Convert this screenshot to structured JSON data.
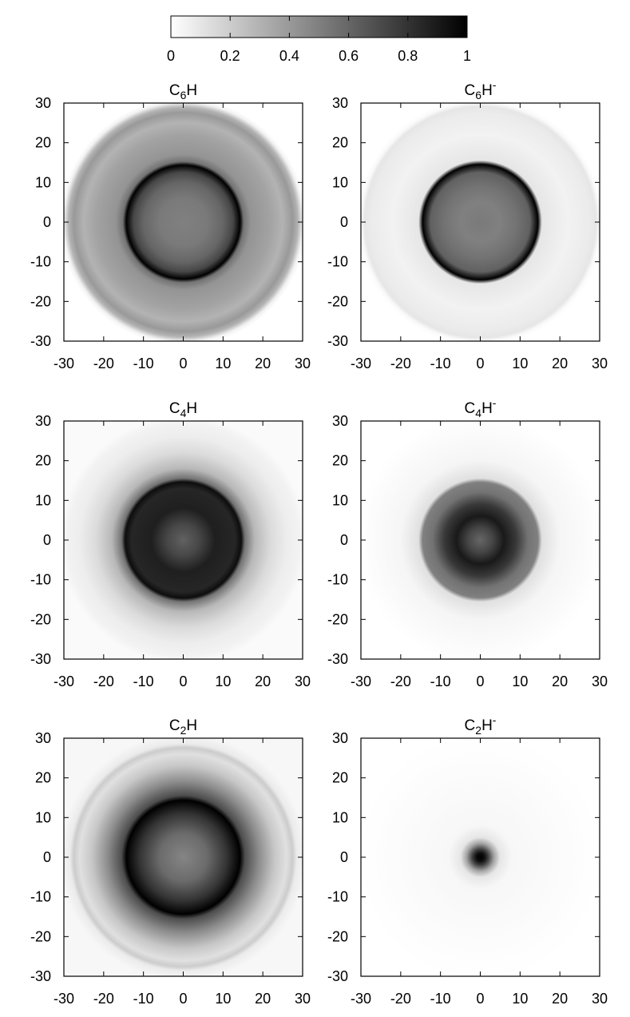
{
  "colorbar": {
    "ticks": [
      "0",
      "0.2",
      "0.4",
      "0.6",
      "0.8",
      "1"
    ],
    "range": [
      0,
      1
    ],
    "gradient": [
      "#ffffff",
      "#000000"
    ]
  },
  "chart_data": [
    {
      "type": "heatmap",
      "title": {
        "base": "C",
        "sub": "6",
        "rest": "H",
        "sup": ""
      },
      "xlim": [
        -30,
        30
      ],
      "ylim": [
        -30,
        30
      ],
      "xticks": [
        "-30",
        "-20",
        "-10",
        "0",
        "10",
        "20",
        "30"
      ],
      "yticks": [
        "-30",
        "-20",
        "-10",
        "0",
        "10",
        "20",
        "30"
      ],
      "radial_profile": [
        {
          "r": 0,
          "v": 0.5
        },
        {
          "r": 6,
          "v": 0.52
        },
        {
          "r": 10,
          "v": 0.6
        },
        {
          "r": 12.5,
          "v": 0.72
        },
        {
          "r": 14.3,
          "v": 1.0
        },
        {
          "r": 15.2,
          "v": 0.55
        },
        {
          "r": 17,
          "v": 0.42
        },
        {
          "r": 22,
          "v": 0.36
        },
        {
          "r": 25,
          "v": 0.3
        },
        {
          "r": 27.5,
          "v": 0.4
        },
        {
          "r": 28.8,
          "v": 0.3
        },
        {
          "r": 30,
          "v": 0.05
        },
        {
          "r": 31,
          "v": 0.0
        }
      ]
    },
    {
      "type": "heatmap",
      "title": {
        "base": "C",
        "sub": "6",
        "rest": "H",
        "sup": "-"
      },
      "xlim": [
        -30,
        30
      ],
      "ylim": [
        -30,
        30
      ],
      "xticks": [
        "-30",
        "-20",
        "-10",
        "0",
        "10",
        "20",
        "30"
      ],
      "yticks": [
        "-30",
        "-20",
        "-10",
        "0",
        "10",
        "20",
        "30"
      ],
      "radial_profile": [
        {
          "r": 0,
          "v": 0.52
        },
        {
          "r": 5,
          "v": 0.5
        },
        {
          "r": 9,
          "v": 0.55
        },
        {
          "r": 12.5,
          "v": 0.62
        },
        {
          "r": 14.5,
          "v": 1.0
        },
        {
          "r": 15.5,
          "v": 0.1
        },
        {
          "r": 22,
          "v": 0.05
        },
        {
          "r": 27.5,
          "v": 0.08
        },
        {
          "r": 29,
          "v": 0.1
        },
        {
          "r": 30,
          "v": 0.02
        },
        {
          "r": 31,
          "v": 0.0
        }
      ]
    },
    {
      "type": "heatmap",
      "title": {
        "base": "C",
        "sub": "4",
        "rest": "H",
        "sup": ""
      },
      "xlim": [
        -30,
        30
      ],
      "ylim": [
        -30,
        30
      ],
      "xticks": [
        "-30",
        "-20",
        "-10",
        "0",
        "10",
        "20",
        "30"
      ],
      "yticks": [
        "-30",
        "-20",
        "-10",
        "0",
        "10",
        "20",
        "30"
      ],
      "radial_profile": [
        {
          "r": 0,
          "v": 0.62
        },
        {
          "r": 4,
          "v": 0.72
        },
        {
          "r": 8,
          "v": 0.88
        },
        {
          "r": 13,
          "v": 0.85
        },
        {
          "r": 14.6,
          "v": 0.95
        },
        {
          "r": 15.5,
          "v": 0.55
        },
        {
          "r": 18,
          "v": 0.28
        },
        {
          "r": 22,
          "v": 0.14
        },
        {
          "r": 26,
          "v": 0.07
        },
        {
          "r": 29,
          "v": 0.05
        },
        {
          "r": 31,
          "v": 0.02
        }
      ]
    },
    {
      "type": "heatmap",
      "title": {
        "base": "C",
        "sub": "4",
        "rest": "H",
        "sup": "-"
      },
      "xlim": [
        -30,
        30
      ],
      "ylim": [
        -30,
        30
      ],
      "xticks": [
        "-30",
        "-20",
        "-10",
        "0",
        "10",
        "20",
        "30"
      ],
      "yticks": [
        "-30",
        "-20",
        "-10",
        "0",
        "10",
        "20",
        "30"
      ],
      "radial_profile": [
        {
          "r": 0,
          "v": 0.6
        },
        {
          "r": 3,
          "v": 0.72
        },
        {
          "r": 6,
          "v": 0.9
        },
        {
          "r": 9,
          "v": 0.78
        },
        {
          "r": 12,
          "v": 0.55
        },
        {
          "r": 14.5,
          "v": 0.5
        },
        {
          "r": 15.5,
          "v": 0.12
        },
        {
          "r": 20,
          "v": 0.04
        },
        {
          "r": 31,
          "v": 0.0
        }
      ]
    },
    {
      "type": "heatmap",
      "title": {
        "base": "C",
        "sub": "2",
        "rest": "H",
        "sup": ""
      },
      "xlim": [
        -30,
        30
      ],
      "ylim": [
        -30,
        30
      ],
      "xticks": [
        "-30",
        "-20",
        "-10",
        "0",
        "10",
        "20",
        "30"
      ],
      "yticks": [
        "-30",
        "-20",
        "-10",
        "0",
        "10",
        "20",
        "30"
      ],
      "radial_profile": [
        {
          "r": 0,
          "v": 0.48
        },
        {
          "r": 6,
          "v": 0.58
        },
        {
          "r": 11,
          "v": 0.8
        },
        {
          "r": 14.3,
          "v": 1.0
        },
        {
          "r": 15.5,
          "v": 0.7
        },
        {
          "r": 19,
          "v": 0.45
        },
        {
          "r": 23,
          "v": 0.22
        },
        {
          "r": 26,
          "v": 0.12
        },
        {
          "r": 27.5,
          "v": 0.2
        },
        {
          "r": 28.5,
          "v": 0.08
        },
        {
          "r": 31,
          "v": 0.03
        }
      ]
    },
    {
      "type": "heatmap",
      "title": {
        "base": "C",
        "sub": "2",
        "rest": "H",
        "sup": "-"
      },
      "xlim": [
        -30,
        30
      ],
      "ylim": [
        -30,
        30
      ],
      "xticks": [
        "-30",
        "-20",
        "-10",
        "0",
        "10",
        "20",
        "30"
      ],
      "yticks": [
        "-30",
        "-20",
        "-10",
        "0",
        "10",
        "20",
        "30"
      ],
      "radial_profile": [
        {
          "r": 0,
          "v": 1.0
        },
        {
          "r": 1,
          "v": 0.95
        },
        {
          "r": 2,
          "v": 0.75
        },
        {
          "r": 3.5,
          "v": 0.35
        },
        {
          "r": 5,
          "v": 0.1
        },
        {
          "r": 8,
          "v": 0.03
        },
        {
          "r": 22,
          "v": 0.01
        },
        {
          "r": 31,
          "v": 0.0
        }
      ]
    }
  ]
}
